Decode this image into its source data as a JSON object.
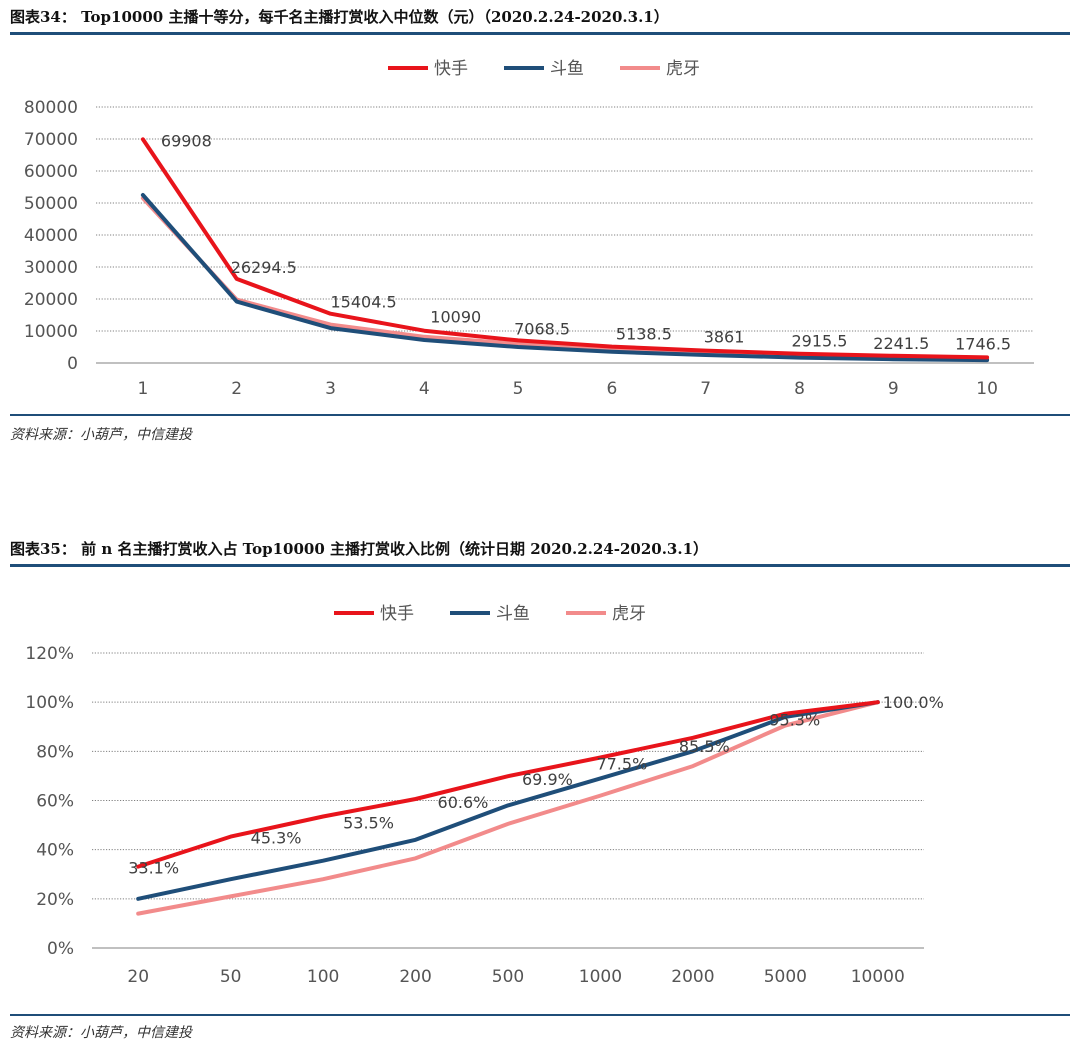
{
  "figure1": {
    "title": "图表34： Top10000 主播十等分，每千名主播打赏收入中位数（元）（2020.2.24-2020.3.1）",
    "source": "资料来源：小葫芦，中信建投"
  },
  "figure2": {
    "title": "图表35： 前 n 名主播打赏收入占 Top10000 主播打赏收入比例（统计日期 2020.2.24-2020.3.1）",
    "source": "资料来源：小葫芦，中信建投"
  },
  "colors": {
    "kuaishou": "#e8141b",
    "douyu": "#1f4e79",
    "huya": "#f28b8b",
    "rule": "#1f4e79",
    "grid": "#808080"
  },
  "chart_data": [
    {
      "type": "line",
      "categories": [
        "1",
        "2",
        "3",
        "4",
        "5",
        "6",
        "7",
        "8",
        "9",
        "10"
      ],
      "series": [
        {
          "name": "快手",
          "values": [
            69908,
            26294.5,
            15404.5,
            10090,
            7068.5,
            5138.5,
            3861,
            2915.5,
            2241.5,
            1746.5
          ]
        },
        {
          "name": "斗鱼",
          "values": [
            52500,
            19200,
            10900,
            7200,
            5000,
            3500,
            2500,
            1700,
            1200,
            900
          ]
        },
        {
          "name": "虎牙",
          "values": [
            51500,
            19800,
            12000,
            8200,
            6000,
            4400,
            3300,
            2500,
            1900,
            1500
          ]
        }
      ],
      "data_labels": [
        "69908",
        "26294.5",
        "15404.5",
        "10090",
        "7068.5",
        "5138.5",
        "3861",
        "2915.5",
        "2241.5",
        "1746.5"
      ],
      "y_ticks": [
        "0",
        "10000",
        "20000",
        "30000",
        "40000",
        "50000",
        "60000",
        "70000",
        "80000"
      ],
      "ylim": [
        0,
        80000
      ],
      "grid": true,
      "legend": "top-center"
    },
    {
      "type": "line",
      "categories": [
        "20",
        "50",
        "100",
        "200",
        "500",
        "1000",
        "2000",
        "5000",
        "10000"
      ],
      "series": [
        {
          "name": "快手",
          "values": [
            33.1,
            45.3,
            53.5,
            60.6,
            69.9,
            77.5,
            85.5,
            95.3,
            100.0
          ]
        },
        {
          "name": "斗鱼",
          "values": [
            20,
            28,
            35.5,
            44,
            58,
            69,
            80,
            94,
            100
          ]
        },
        {
          "name": "虎牙",
          "values": [
            14,
            21,
            28,
            36.5,
            50.5,
            62,
            74,
            90.5,
            100
          ]
        }
      ],
      "data_labels": [
        "33.1%",
        "45.3%",
        "53.5%",
        "60.6%",
        "69.9%",
        "77.5%",
        "85.5%",
        "95.3%",
        "100.0%"
      ],
      "y_ticks": [
        "0%",
        "20%",
        "40%",
        "60%",
        "80%",
        "100%",
        "120%"
      ],
      "ylim": [
        0,
        120
      ],
      "grid": true,
      "legend": "top-center"
    }
  ]
}
